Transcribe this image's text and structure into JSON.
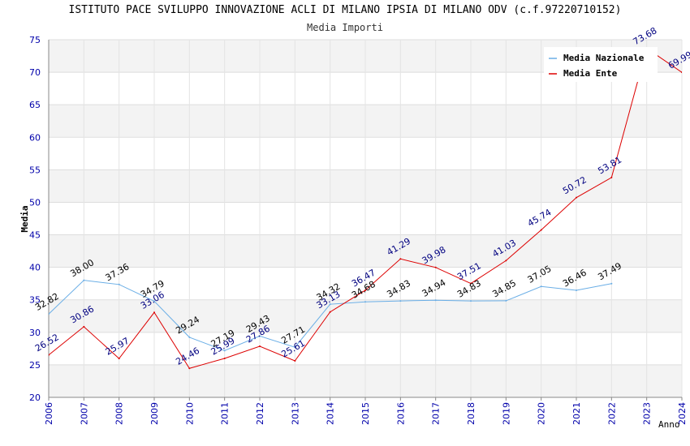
{
  "chart_data": {
    "type": "line",
    "title": "ISTITUTO PACE SVILUPPO INNOVAZIONE ACLI DI MILANO IPSIA DI MILANO ODV (c.f.97220710152)",
    "subtitle": "Media Importi",
    "xlabel": "Anno",
    "ylabel": "Media",
    "ylim": [
      20,
      75
    ],
    "yticks": [
      "20",
      "25",
      "30",
      "35",
      "40",
      "45",
      "50",
      "55",
      "60",
      "65",
      "70",
      "75"
    ],
    "x": [
      "2006",
      "2007",
      "2008",
      "2009",
      "2010",
      "2011",
      "2012",
      "2013",
      "2014",
      "2015",
      "2016",
      "2017",
      "2018",
      "2019",
      "2020",
      "2021",
      "2022",
      "2023",
      "2024"
    ],
    "legend_position": "top-right",
    "series": [
      {
        "name": "Media Nazionale",
        "color": "#6aaee6",
        "label_color": "#000000",
        "values": [
          32.82,
          38.0,
          37.36,
          34.79,
          29.24,
          27.19,
          29.43,
          27.71,
          34.32,
          34.68,
          34.83,
          34.94,
          34.83,
          34.85,
          37.05,
          36.46,
          37.49,
          null,
          null
        ],
        "labels": [
          "32.82",
          "38.00",
          "37.36",
          "34.79",
          "29.24",
          "27.19",
          "29.43",
          "27.71",
          "34.32",
          "34.68",
          "34.83",
          "34.94",
          "34.83",
          "34.85",
          "37.05",
          "36.46",
          "37.49",
          "",
          ""
        ]
      },
      {
        "name": "Media Ente",
        "color": "#dd0000",
        "label_color": "#000080",
        "values": [
          26.52,
          30.86,
          25.97,
          33.06,
          24.46,
          25.99,
          27.86,
          25.61,
          33.13,
          36.47,
          41.29,
          39.98,
          37.51,
          41.03,
          45.74,
          50.72,
          53.81,
          73.68,
          69.99
        ],
        "labels": [
          "26.52",
          "30.86",
          "25.97",
          "33.06",
          "24.46",
          "25.99",
          "27.86",
          "25.61",
          "33.13",
          "36.47",
          "41.29",
          "39.98",
          "37.51",
          "41.03",
          "45.74",
          "50.72",
          "53.81",
          "73.68",
          "69.99"
        ]
      }
    ]
  }
}
